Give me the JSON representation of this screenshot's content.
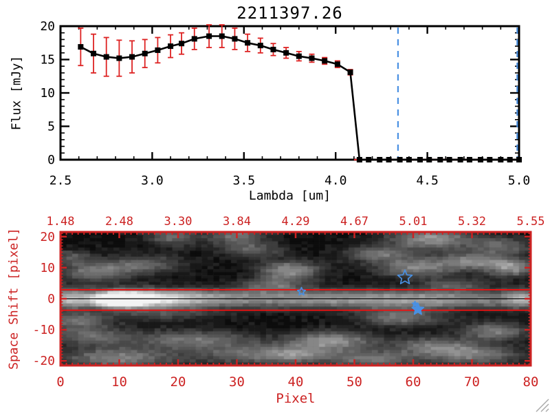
{
  "window": {
    "background": "#ffffff"
  },
  "colors": {
    "axis_red": "#cc2222",
    "bright_red": "#ee1111",
    "error_red": "#dd2222",
    "blue": "#4a90e2",
    "black": "#000000",
    "grip_gray": "#aaaaaa"
  },
  "chart_data": [
    {
      "type": "line",
      "title": "2211397.26",
      "xlabel": "Lambda [um]",
      "ylabel": "Flux [mJy]",
      "xlim": [
        2.5,
        5.0
      ],
      "ylim": [
        0,
        20
      ],
      "xticks": [
        2.5,
        3.0,
        3.5,
        4.0,
        4.5,
        5.0
      ],
      "xtick_labels": [
        "2.5",
        "3.0",
        "3.5",
        "4.0",
        "4.5",
        "5.0"
      ],
      "yticks": [
        0,
        5,
        10,
        15,
        20
      ],
      "ytick_labels": [
        "0",
        "5",
        "10",
        "15",
        "20"
      ],
      "x_minor_step": 0.1,
      "y_minor_step": 1,
      "grid": false,
      "marker": "filled-square",
      "series": [
        {
          "name": "spectrum",
          "x": [
            2.61,
            2.68,
            2.75,
            2.82,
            2.89,
            2.96,
            3.03,
            3.1,
            3.16,
            3.23,
            3.31,
            3.38,
            3.45,
            3.52,
            3.59,
            3.66,
            3.73,
            3.8,
            3.87,
            3.94,
            4.01,
            4.08,
            4.13,
            4.18,
            4.24,
            4.29,
            4.35,
            4.4,
            4.46,
            4.51,
            4.57,
            4.62,
            4.68,
            4.73,
            4.79,
            4.84,
            4.9,
            4.95,
            5.0
          ],
          "y": [
            16.9,
            15.9,
            15.4,
            15.2,
            15.4,
            15.9,
            16.4,
            17.0,
            17.4,
            18.1,
            18.5,
            18.5,
            18.1,
            17.5,
            17.1,
            16.5,
            16.0,
            15.5,
            15.2,
            14.8,
            14.3,
            13.1,
            0,
            0,
            0,
            0,
            0,
            0,
            0,
            0,
            0,
            0,
            0,
            0,
            0,
            0,
            0,
            0,
            0
          ],
          "yerr": [
            2.8,
            2.9,
            2.9,
            2.7,
            2.4,
            2.1,
            1.9,
            1.7,
            1.6,
            1.6,
            1.7,
            1.7,
            1.6,
            1.3,
            1.1,
            0.9,
            0.8,
            0.7,
            0.6,
            0.5,
            0.5,
            0.4,
            0,
            0,
            0,
            0,
            0,
            0,
            0,
            0,
            0,
            0,
            0,
            0,
            0,
            0,
            0,
            0,
            0
          ]
        }
      ],
      "zero_line": {
        "y": 0,
        "x_start": 4.1,
        "style": "dashed",
        "color": "#dd2222"
      },
      "vlines": [
        {
          "x": 4.34,
          "style": "dashed",
          "color": "#4a90e2"
        },
        {
          "x": 4.99,
          "style": "dashed",
          "color": "#4a90e2"
        }
      ]
    },
    {
      "type": "heatmap",
      "xlabel": "Pixel",
      "ylabel": "Space Shift [pixel]",
      "xlim": [
        0,
        80
      ],
      "ylim": [
        -21.5,
        21.5
      ],
      "xticks": [
        0,
        10,
        20,
        30,
        40,
        50,
        60,
        70,
        80
      ],
      "xtick_labels": [
        "0",
        "10",
        "20",
        "30",
        "40",
        "50",
        "60",
        "70",
        "80"
      ],
      "yticks": [
        -20,
        -10,
        0,
        10,
        20
      ],
      "ytick_labels": [
        "-20",
        "-10",
        "0",
        "10",
        "20"
      ],
      "top_axis_labels": [
        "1.48",
        "2.48",
        "3.30",
        "3.84",
        "4.29",
        "4.67",
        "5.01",
        "5.32",
        "5.55"
      ],
      "aperture_lines": [
        2.9,
        -3.7
      ],
      "trace_line": 0.0,
      "stars": [
        {
          "x": 41.0,
          "y": 2.3,
          "size": 6,
          "filled": false
        },
        {
          "x": 58.6,
          "y": 6.8,
          "size": 11,
          "filled": false
        },
        {
          "x": 60.8,
          "y": -3.4,
          "size": 9,
          "filled": true
        },
        {
          "x": 60.3,
          "y": -1.7,
          "size": 4,
          "filled": true
        }
      ],
      "blobs": [
        [
          10,
          -0.3,
          3.0,
          1.6,
          1.1
        ],
        [
          15,
          0,
          7,
          2.0,
          0.6
        ],
        [
          40,
          0,
          26,
          2.1,
          0.48
        ],
        [
          65,
          -0.5,
          12,
          1.8,
          0.25
        ],
        [
          79,
          0,
          2.5,
          2.2,
          0.4
        ],
        [
          1,
          0,
          2.5,
          2.2,
          0.45
        ],
        [
          6,
          8.5,
          4.5,
          2.2,
          0.38
        ],
        [
          14,
          11,
          5,
          2.0,
          0.3
        ],
        [
          2,
          13.5,
          2.5,
          1.6,
          0.26
        ],
        [
          19,
          20,
          3,
          2.2,
          0.33
        ],
        [
          30,
          20.5,
          3.5,
          2.5,
          0.38
        ],
        [
          33,
          15.5,
          3.5,
          1.8,
          0.26
        ],
        [
          39,
          9,
          3.5,
          2.2,
          0.5
        ],
        [
          36,
          4.5,
          4,
          1.6,
          0.3
        ],
        [
          63,
          19.5,
          5,
          2.5,
          0.5
        ],
        [
          54,
          14.5,
          4,
          1.8,
          0.36
        ],
        [
          60,
          10,
          4.5,
          2.2,
          0.42
        ],
        [
          70,
          12,
          4.5,
          2.0,
          0.42
        ],
        [
          77,
          10,
          3,
          2.0,
          0.46
        ],
        [
          75,
          17,
          4,
          2.0,
          0.32
        ],
        [
          67,
          4.5,
          4,
          1.6,
          0.27
        ],
        [
          3,
          -7,
          4,
          2.0,
          0.36
        ],
        [
          5,
          -12,
          5,
          2.0,
          0.32
        ],
        [
          10,
          -19,
          7,
          2.5,
          0.42
        ],
        [
          22,
          -13,
          7,
          2.0,
          0.36
        ],
        [
          30,
          -17.5,
          6,
          2.5,
          0.28
        ],
        [
          40,
          -18,
          5,
          2.0,
          0.42
        ],
        [
          46,
          -13.5,
          5,
          2.2,
          0.5
        ],
        [
          58,
          -6,
          5,
          2.0,
          0.38
        ],
        [
          63,
          -15,
          5,
          2.0,
          0.33
        ],
        [
          53,
          -19.5,
          5,
          2.0,
          0.38
        ],
        [
          70,
          -18,
          6,
          2.2,
          0.42
        ],
        [
          74,
          -10.5,
          4,
          2.0,
          0.42
        ],
        [
          18,
          -5,
          6,
          1.5,
          0.2
        ]
      ]
    }
  ]
}
